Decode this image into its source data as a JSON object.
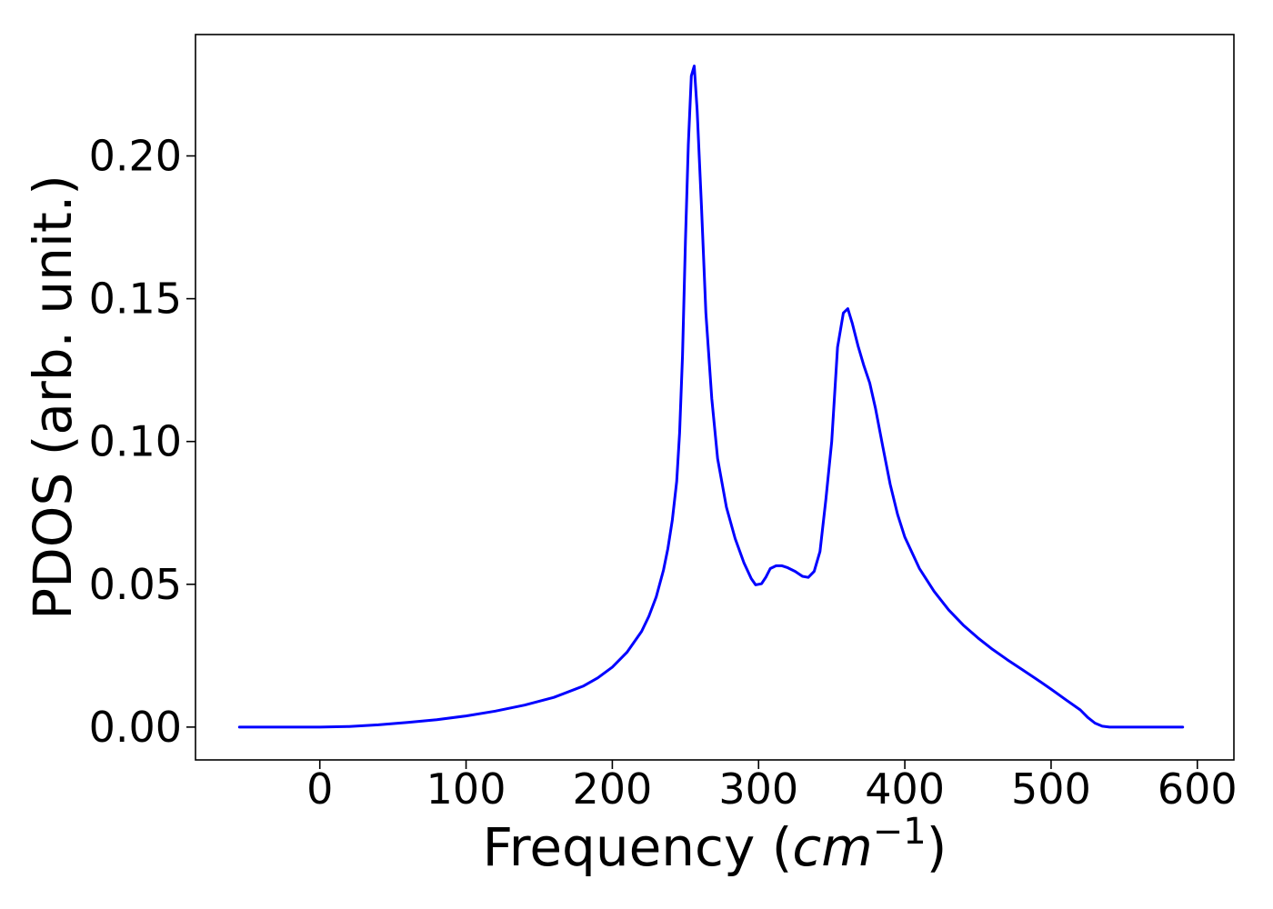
{
  "chart_data": {
    "type": "line",
    "title": "",
    "xlabel": "Frequency",
    "xlabel_unit": "cm",
    "xlabel_unit_exponent": "−1",
    "ylabel": "PDOS (arb. unit.)",
    "xlim": [
      -85,
      625
    ],
    "ylim": [
      -0.0115,
      0.2425
    ],
    "xticks": [
      0,
      100,
      200,
      300,
      400,
      500,
      600
    ],
    "xtick_labels": [
      "0",
      "100",
      "200",
      "300",
      "400",
      "500",
      "600"
    ],
    "yticks": [
      0.0,
      0.05,
      0.1,
      0.15,
      0.2
    ],
    "ytick_labels": [
      "0.00",
      "0.05",
      "0.10",
      "0.15",
      "0.20"
    ],
    "grid": false,
    "legend": false,
    "series": [
      {
        "color": "#0000ff",
        "x": [
          -55,
          -20,
          0,
          20,
          40,
          60,
          80,
          100,
          120,
          140,
          160,
          180,
          190,
          200,
          210,
          220,
          225,
          230,
          235,
          238,
          241,
          244,
          246,
          248,
          250,
          252,
          254,
          256,
          258,
          261,
          264,
          268,
          272,
          278,
          284,
          290,
          295,
          298,
          302,
          305,
          308,
          312,
          316,
          320,
          325,
          330,
          334,
          338,
          342,
          346,
          350,
          354,
          358,
          361,
          364,
          368,
          372,
          376,
          380,
          385,
          390,
          395,
          400,
          410,
          420,
          430,
          440,
          450,
          460,
          470,
          480,
          490,
          500,
          510,
          520,
          525,
          530,
          535,
          540,
          545,
          550,
          560,
          570,
          580,
          590
        ],
        "y": [
          0.0,
          0.0,
          0.0,
          0.0002,
          0.0008,
          0.0016,
          0.0026,
          0.0039,
          0.0056,
          0.0077,
          0.0104,
          0.0143,
          0.0172,
          0.021,
          0.0262,
          0.0335,
          0.0388,
          0.0456,
          0.055,
          0.0625,
          0.0725,
          0.086,
          0.103,
          0.13,
          0.17,
          0.204,
          0.228,
          0.2315,
          0.216,
          0.182,
          0.145,
          0.115,
          0.094,
          0.077,
          0.066,
          0.0575,
          0.052,
          0.0498,
          0.0502,
          0.0525,
          0.0555,
          0.0565,
          0.0565,
          0.0558,
          0.0545,
          0.0528,
          0.0524,
          0.0545,
          0.0615,
          0.0795,
          0.1,
          0.133,
          0.145,
          0.1465,
          0.1415,
          0.1335,
          0.1265,
          0.1205,
          0.1115,
          0.098,
          0.085,
          0.0745,
          0.0665,
          0.0555,
          0.0475,
          0.041,
          0.0357,
          0.0312,
          0.0272,
          0.0236,
          0.0202,
          0.0168,
          0.0133,
          0.0096,
          0.006,
          0.0034,
          0.0014,
          0.0003,
          0.0,
          0.0,
          0.0,
          0.0,
          0.0,
          0.0,
          0.0
        ]
      }
    ]
  }
}
